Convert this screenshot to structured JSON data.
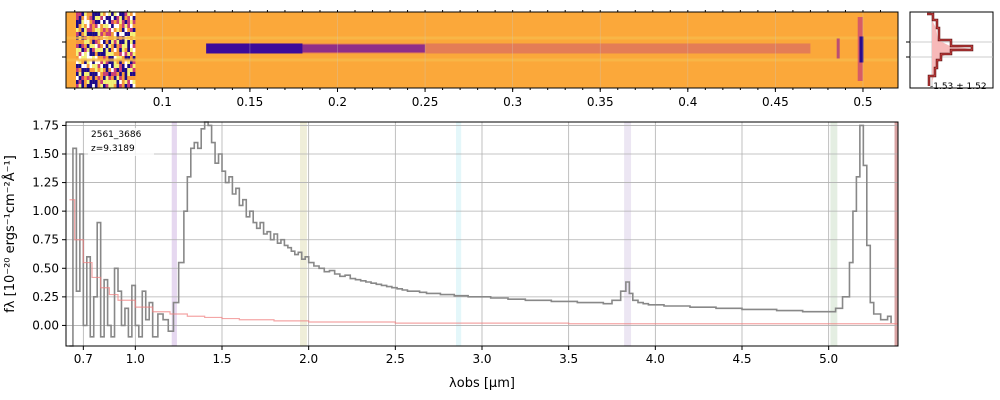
{
  "figure": {
    "object_id": "2561_3686",
    "redshift_label": "z=9.3189",
    "profile_label": "-1.53 ± 1.52"
  },
  "spectrum2d": {
    "x_ticks": [
      "0.1",
      "0.15",
      "0.2",
      "0.25",
      "0.3",
      "0.35",
      "0.4",
      "0.45",
      "0.5"
    ],
    "x_tick_values": [
      0.1,
      0.15,
      0.2,
      0.25,
      0.3,
      0.35,
      0.4,
      0.45,
      0.5
    ],
    "xlim": [
      0.045,
      0.52
    ],
    "colormap": "plasma",
    "trace_row_fraction": 0.48
  },
  "chart_data": {
    "type": "line",
    "title": "",
    "xlabel": "λobs [μm]",
    "ylabel": "fλ [10⁻²⁰ ergs⁻¹cm⁻²Å⁻¹]",
    "xlim": [
      0.6,
      5.4
    ],
    "ylim": [
      -0.18,
      1.78
    ],
    "x_ticks": [
      "0.7",
      "1.0",
      "1.5",
      "2.0",
      "2.5",
      "3.0",
      "3.5",
      "4.0",
      "4.5",
      "5.0"
    ],
    "x_tick_values": [
      0.7,
      1.0,
      1.5,
      2.0,
      2.5,
      3.0,
      3.5,
      4.0,
      4.5,
      5.0
    ],
    "y_ticks": [
      "0.00",
      "0.25",
      "0.50",
      "0.75",
      "1.00",
      "1.25",
      "1.50",
      "1.75"
    ],
    "y_tick_values": [
      0,
      0.25,
      0.5,
      0.75,
      1.0,
      1.25,
      1.5,
      1.75
    ],
    "grid": true,
    "series": [
      {
        "color": "#888888",
        "x": [
          0.62,
          0.64,
          0.66,
          0.68,
          0.7,
          0.72,
          0.74,
          0.76,
          0.78,
          0.8,
          0.82,
          0.84,
          0.86,
          0.88,
          0.9,
          0.92,
          0.94,
          0.96,
          0.98,
          1.0,
          1.02,
          1.04,
          1.06,
          1.08,
          1.1,
          1.13,
          1.16,
          1.19,
          1.22,
          1.25,
          1.28,
          1.3,
          1.32,
          1.34,
          1.36,
          1.38,
          1.4,
          1.42,
          1.44,
          1.46,
          1.48,
          1.5,
          1.52,
          1.54,
          1.56,
          1.58,
          1.6,
          1.62,
          1.64,
          1.66,
          1.68,
          1.7,
          1.72,
          1.74,
          1.76,
          1.78,
          1.8,
          1.82,
          1.84,
          1.86,
          1.88,
          1.9,
          1.92,
          1.94,
          1.96,
          1.98,
          2.0,
          2.03,
          2.06,
          2.09,
          2.12,
          2.15,
          2.18,
          2.21,
          2.24,
          2.27,
          2.3,
          2.33,
          2.36,
          2.39,
          2.42,
          2.45,
          2.48,
          2.51,
          2.54,
          2.57,
          2.6,
          2.64,
          2.68,
          2.72,
          2.76,
          2.8,
          2.84,
          2.88,
          2.92,
          2.96,
          3.0,
          3.05,
          3.1,
          3.15,
          3.2,
          3.25,
          3.3,
          3.35,
          3.4,
          3.45,
          3.5,
          3.55,
          3.6,
          3.65,
          3.7,
          3.75,
          3.8,
          3.83,
          3.85,
          3.87,
          3.9,
          3.93,
          3.96,
          4.0,
          4.05,
          4.1,
          4.15,
          4.2,
          4.25,
          4.3,
          4.35,
          4.4,
          4.45,
          4.5,
          4.55,
          4.6,
          4.65,
          4.7,
          4.75,
          4.8,
          4.85,
          4.9,
          4.95,
          5.0,
          5.04,
          5.08,
          5.12,
          5.14,
          5.16,
          5.18,
          5.2,
          5.22,
          5.24,
          5.26,
          5.3,
          5.34,
          5.36
        ],
        "y": [
          -0.18,
          1.55,
          0.3,
          1.5,
          0.0,
          0.6,
          -0.1,
          0.25,
          0.9,
          -0.1,
          0.4,
          0.0,
          -0.1,
          0.5,
          0.3,
          0.0,
          0.15,
          -0.1,
          0.35,
          0.0,
          -0.1,
          0.3,
          0.05,
          0.2,
          -0.1,
          0.1,
          0.05,
          -0.05,
          0.2,
          0.55,
          1.0,
          1.3,
          1.55,
          1.6,
          1.55,
          1.72,
          1.78,
          1.75,
          1.6,
          1.42,
          1.5,
          1.35,
          1.25,
          1.3,
          1.15,
          1.2,
          1.05,
          1.1,
          0.95,
          1.0,
          0.9,
          0.85,
          0.9,
          0.8,
          0.82,
          0.75,
          0.8,
          0.72,
          0.75,
          0.7,
          0.68,
          0.65,
          0.62,
          0.64,
          0.58,
          0.6,
          0.55,
          0.52,
          0.5,
          0.47,
          0.48,
          0.45,
          0.43,
          0.44,
          0.41,
          0.4,
          0.39,
          0.38,
          0.37,
          0.36,
          0.35,
          0.34,
          0.33,
          0.32,
          0.31,
          0.3,
          0.3,
          0.29,
          0.28,
          0.28,
          0.27,
          0.27,
          0.26,
          0.26,
          0.25,
          0.25,
          0.25,
          0.24,
          0.24,
          0.23,
          0.23,
          0.22,
          0.22,
          0.22,
          0.21,
          0.21,
          0.21,
          0.2,
          0.2,
          0.2,
          0.19,
          0.22,
          0.3,
          0.38,
          0.28,
          0.22,
          0.2,
          0.19,
          0.18,
          0.18,
          0.17,
          0.17,
          0.17,
          0.16,
          0.16,
          0.16,
          0.15,
          0.15,
          0.15,
          0.14,
          0.14,
          0.14,
          0.14,
          0.13,
          0.13,
          0.13,
          0.12,
          0.12,
          0.12,
          0.12,
          0.15,
          0.25,
          0.55,
          1.0,
          1.3,
          1.75,
          1.4,
          0.7,
          0.2,
          0.1,
          0.05,
          0.08,
          0.02
        ]
      },
      {
        "color": "#f08080",
        "x": [
          0.62,
          0.65,
          0.7,
          0.75,
          0.8,
          0.85,
          0.9,
          1.0,
          1.1,
          1.2,
          1.3,
          1.4,
          1.5,
          1.6,
          1.8,
          2.0,
          2.5,
          3.0,
          3.5,
          4.0,
          4.5,
          5.0,
          5.4
        ],
        "y": [
          1.1,
          0.75,
          0.55,
          0.42,
          0.33,
          0.27,
          0.22,
          0.16,
          0.12,
          0.1,
          0.08,
          0.07,
          0.06,
          0.05,
          0.04,
          0.03,
          0.02,
          0.02,
          0.015,
          0.015,
          0.015,
          0.015,
          0.015
        ]
      }
    ],
    "bands": [
      {
        "x0": 1.21,
        "x1": 1.24,
        "color": "#e6d8f0"
      },
      {
        "x0": 1.95,
        "x1": 1.99,
        "color": "#efeed9"
      },
      {
        "x0": 2.85,
        "x1": 2.88,
        "color": "#e4f7fa"
      },
      {
        "x0": 3.82,
        "x1": 3.86,
        "color": "#ece6f3"
      },
      {
        "x0": 5.01,
        "x1": 5.05,
        "color": "#e4eee2"
      },
      {
        "x0": 5.38,
        "x1": 5.42,
        "color": "#d9a3a3"
      }
    ]
  }
}
